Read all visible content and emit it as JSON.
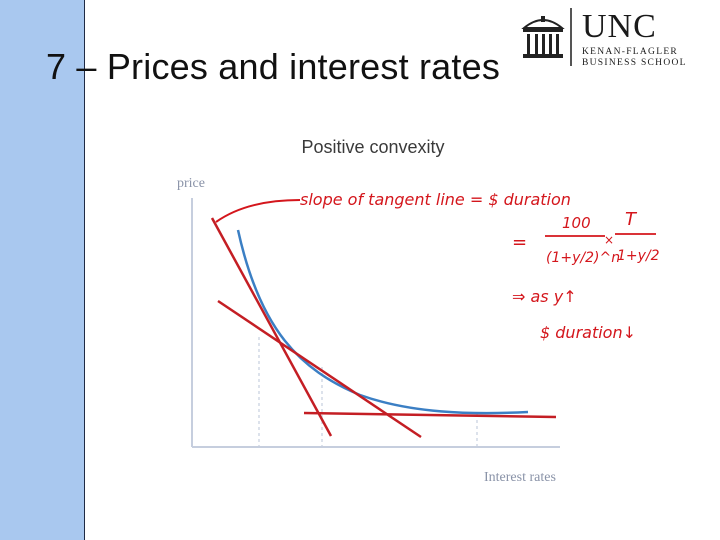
{
  "slide": {
    "title": "7 – Prices and interest rates"
  },
  "logo": {
    "name": "UNC",
    "school_line1": "KENAN-FLAGLER",
    "school_line2": "BUSINESS SCHOOL"
  },
  "chart_data": {
    "type": "line",
    "title": "Positive convexity",
    "xlabel": "Interest rates",
    "ylabel": "price",
    "grid": false,
    "series": [
      {
        "values": []
      }
    ]
  },
  "annotations": {
    "line1": "slope of tangent line = $ duration",
    "eq_prefix": "=",
    "num_left": "100",
    "den_left": "(1+y/2)^n",
    "times": "×",
    "num_right": "T",
    "den_right": "1+y/2",
    "line3": "⇒ as y↑",
    "line4": "$ duration↓"
  },
  "colors": {
    "sidebar": "#a9c8ef",
    "curve": "#3b7fc4",
    "tangent": "#c41e24",
    "ink": "#d4161c",
    "axis": "#c6cede"
  }
}
